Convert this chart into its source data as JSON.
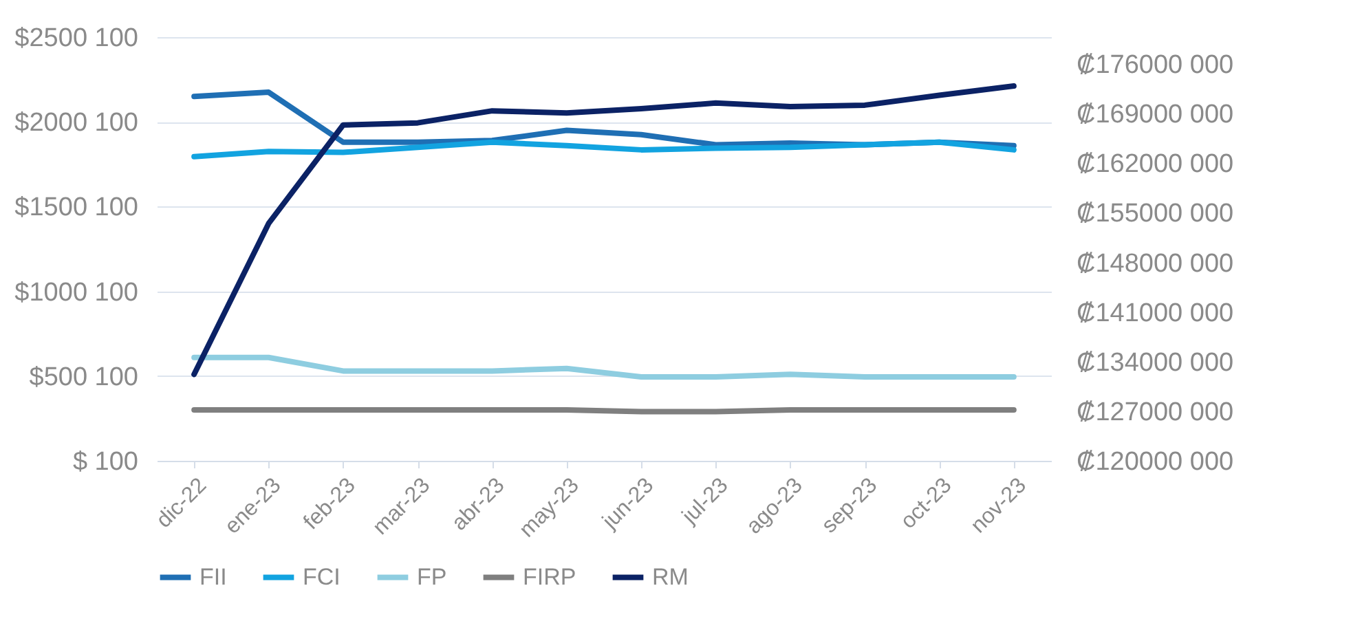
{
  "chart_data": {
    "type": "line",
    "categories": [
      "dic-22",
      "ene-23",
      "feb-23",
      "mar-23",
      "abr-23",
      "may-23",
      "jun-23",
      "jul-23",
      "ago-23",
      "sep-23",
      "oct-23",
      "nov-23"
    ],
    "series": [
      {
        "name": "FII",
        "color": "#1f6fb4",
        "values": [
          2150000,
          2175000,
          1880000,
          1880000,
          1890000,
          1950000,
          1925000,
          1865000,
          1875000,
          1865000,
          1880000,
          1860000
        ]
      },
      {
        "name": "FCI",
        "color": "#12a3e0",
        "values": [
          1795000,
          1825000,
          1820000,
          1850000,
          1880000,
          1860000,
          1835000,
          1845000,
          1850000,
          1865000,
          1880000,
          1835000
        ]
      },
      {
        "name": "FP",
        "color": "#8ecde0",
        "values": [
          610000,
          610000,
          530000,
          530000,
          530000,
          545000,
          495000,
          495000,
          510000,
          495000,
          495000,
          495000
        ]
      },
      {
        "name": "FIRP",
        "color": "#7f7f7f",
        "values": [
          300000,
          300000,
          300000,
          300000,
          300000,
          300000,
          290000,
          290000,
          300000,
          300000,
          300000,
          300000
        ]
      },
      {
        "name": "RM",
        "color": "#0b2265",
        "axis": "y2",
        "values": [
          132200000,
          153500000,
          167400000,
          167700000,
          169400000,
          169100000,
          169700000,
          170500000,
          170000000,
          170200000,
          171600000,
          172900000
        ]
      }
    ],
    "ylim": [
      100,
      2500100
    ],
    "yticks": [
      {
        "value": 100,
        "label": "$ 100"
      },
      {
        "value": 500100,
        "label": "$500 100"
      },
      {
        "value": 1000100,
        "label": "$1000 100"
      },
      {
        "value": 1500100,
        "label": "$1500 100"
      },
      {
        "value": 2000100,
        "label": "$2000 100"
      },
      {
        "value": 2500100,
        "label": "$2500 100"
      }
    ],
    "y2lim": [
      120000000,
      179800000
    ],
    "y2ticks": [
      {
        "value": 120000000,
        "label": "₡120000 000"
      },
      {
        "value": 127000000,
        "label": "₡127000 000"
      },
      {
        "value": 134000000,
        "label": "₡134000 000"
      },
      {
        "value": 141000000,
        "label": "₡141000 000"
      },
      {
        "value": 148000000,
        "label": "₡148000 000"
      },
      {
        "value": 155000000,
        "label": "₡155000 000"
      },
      {
        "value": 162000000,
        "label": "₡162000 000"
      },
      {
        "value": 169000000,
        "label": "₡169000 000"
      },
      {
        "value": 176000000,
        "label": "₡176000 000"
      }
    ],
    "grid": "y",
    "legend": "bottom",
    "line_style": "solid"
  }
}
